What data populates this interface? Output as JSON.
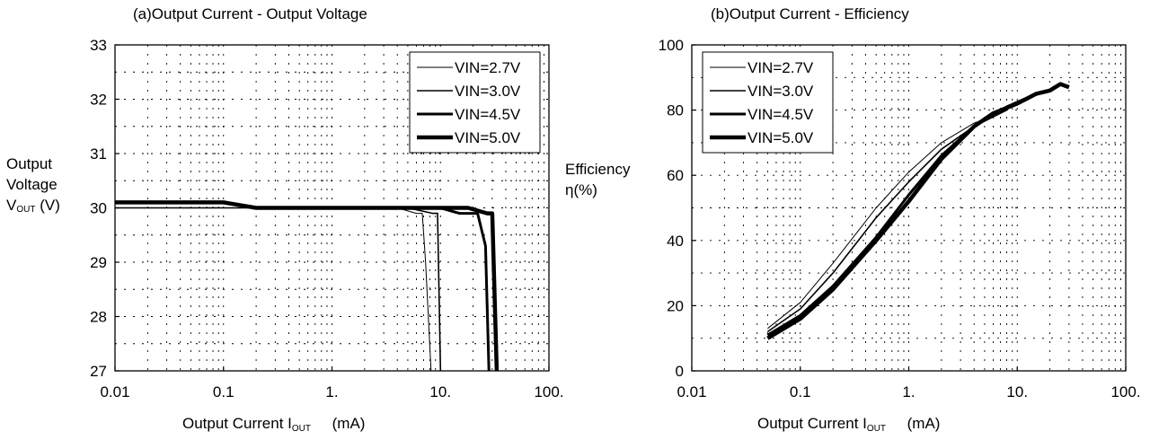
{
  "chart_data": [
    {
      "type": "line",
      "title": "(a)Output Current - Output Voltage",
      "ylabel": {
        "line1": "Output",
        "line2": "Voltage",
        "sym": "V",
        "sub": "OUT",
        "unit": "(V)"
      },
      "xlabel": {
        "text": "Output Current I",
        "sub": "OUT",
        "unit": "(mA)"
      },
      "xscale": "log",
      "xlim": [
        0.01,
        100
      ],
      "ylim": [
        27,
        33
      ],
      "xticks": [
        0.01,
        0.1,
        1,
        10,
        100
      ],
      "xtick_labels": [
        "0.01",
        "0.1",
        "1.",
        "10.",
        "100."
      ],
      "yticks": [
        27,
        28,
        29,
        30,
        31,
        32,
        33
      ],
      "ytick_labels": [
        "27",
        "28",
        "29",
        "30",
        "31",
        "32",
        "33"
      ],
      "grid": "dotted",
      "legend": "top-right",
      "series": [
        {
          "name": "VIN=2.7V",
          "width": 1,
          "x": [
            0.01,
            0.1,
            1,
            4,
            6,
            6.8,
            7.3,
            8.2
          ],
          "y": [
            30.0,
            30.0,
            30.0,
            30.0,
            29.9,
            29.9,
            29.0,
            27.0
          ]
        },
        {
          "name": "VIN=3.0V",
          "width": 1.6,
          "x": [
            0.01,
            0.1,
            1,
            5,
            8.5,
            9.4,
            10.0
          ],
          "y": [
            30.0,
            30.0,
            30.0,
            30.0,
            29.9,
            29.9,
            27.0
          ]
        },
        {
          "name": "VIN=4.5V",
          "width": 3,
          "x": [
            0.01,
            0.1,
            0.2,
            1,
            10,
            15,
            22,
            26,
            28
          ],
          "y": [
            30.1,
            30.1,
            30.0,
            30.0,
            30.0,
            29.9,
            29.9,
            29.3,
            27.0
          ]
        },
        {
          "name": "VIN=5.0V",
          "width": 4.5,
          "x": [
            0.01,
            0.1,
            0.2,
            1,
            10,
            18,
            27,
            30,
            33
          ],
          "y": [
            30.1,
            30.1,
            30.0,
            30.0,
            30.0,
            30.0,
            29.9,
            29.9,
            27.0
          ]
        }
      ]
    },
    {
      "type": "line",
      "title": "(b)Output Current - Efficiency",
      "ylabel": {
        "line1": "Efficiency",
        "line2": "η(%)"
      },
      "xlabel": {
        "text": "Output Current I",
        "sub": "OUT",
        "unit": "(mA)"
      },
      "xscale": "log",
      "xlim": [
        0.01,
        100
      ],
      "ylim": [
        0,
        100
      ],
      "xticks": [
        0.01,
        0.1,
        1,
        10,
        100
      ],
      "xtick_labels": [
        "0.01",
        "0.1",
        "1.",
        "10.",
        "100."
      ],
      "yticks": [
        0,
        20,
        40,
        60,
        80,
        100
      ],
      "ytick_labels": [
        "0",
        "20",
        "40",
        "60",
        "80",
        "100"
      ],
      "grid": "dotted",
      "legend": "top-left",
      "series": [
        {
          "name": "VIN=2.7V",
          "width": 1,
          "x": [
            0.05,
            0.1,
            0.2,
            0.5,
            1,
            2,
            4,
            7
          ],
          "y": [
            13,
            21,
            33,
            50,
            61,
            70,
            76,
            79
          ]
        },
        {
          "name": "VIN=3.0V",
          "width": 1.6,
          "x": [
            0.05,
            0.1,
            0.2,
            0.5,
            1,
            2,
            4,
            8
          ],
          "y": [
            12,
            19,
            30,
            47,
            58,
            68,
            75,
            80
          ]
        },
        {
          "name": "VIN=4.5V",
          "width": 3,
          "x": [
            0.05,
            0.1,
            0.2,
            0.5,
            1,
            2,
            4,
            8,
            15
          ],
          "y": [
            11,
            17,
            26,
            41,
            54,
            66,
            75,
            81,
            85
          ]
        },
        {
          "name": "VIN=5.0V",
          "width": 4.5,
          "x": [
            0.05,
            0.1,
            0.2,
            0.5,
            1,
            2,
            4,
            6,
            10,
            15,
            20,
            25,
            30
          ],
          "y": [
            10,
            16,
            25,
            40,
            52,
            65,
            75,
            79,
            82,
            85,
            86,
            88,
            87
          ]
        }
      ]
    }
  ]
}
